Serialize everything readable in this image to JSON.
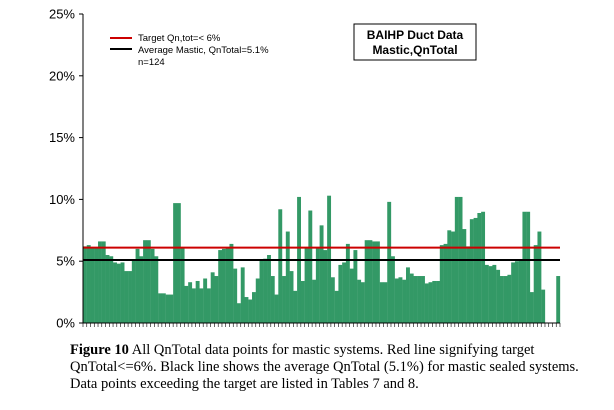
{
  "chart_data": {
    "type": "bar",
    "title": "BAIHP Duct Data Mastic,QnTotal",
    "title_lines": [
      "BAIHP Duct Data",
      "Mastic,QnTotal"
    ],
    "ylim": [
      0,
      25
    ],
    "yticks": [
      0,
      5,
      10,
      15,
      20,
      25
    ],
    "ytick_labels": [
      "0%",
      "5%",
      "10%",
      "15%",
      "20%",
      "25%"
    ],
    "grid": false,
    "legend_position": "top-left",
    "bar_color": "#339966",
    "reference_lines": [
      {
        "name": "Target Qn,tot=< 6%",
        "value": 6.1,
        "color": "#cc0000"
      },
      {
        "name": "Average Mastic, QnTotal=5.1%",
        "value": 5.1,
        "color": "#000000"
      }
    ],
    "note": "n=124",
    "values": [
      6.2,
      6.3,
      6.1,
      6.1,
      6.6,
      6.6,
      5.5,
      5.4,
      4.9,
      4.8,
      4.9,
      4.2,
      4.2,
      5.1,
      6.0,
      5.4,
      6.7,
      6.7,
      6.0,
      5.4,
      2.4,
      2.4,
      2.3,
      2.3,
      9.7,
      9.7,
      6.1,
      3.0,
      3.3,
      2.8,
      3.4,
      2.8,
      3.6,
      2.8,
      4.1,
      3.8,
      5.9,
      6.0,
      6.1,
      6.4,
      4.4,
      1.6,
      4.5,
      2.1,
      1.9,
      2.5,
      3.6,
      5.1,
      5.2,
      5.5,
      3.8,
      2.3,
      9.2,
      3.8,
      7.4,
      4.2,
      2.6,
      10.2,
      3.4,
      6.1,
      9.1,
      3.5,
      6.1,
      7.9,
      5.9,
      10.3,
      3.7,
      2.6,
      4.7,
      4.9,
      6.4,
      4.4,
      5.9,
      3.5,
      3.3,
      6.7,
      6.7,
      6.6,
      6.6,
      3.3,
      3.3,
      9.8,
      5.4,
      3.6,
      3.7,
      3.5,
      4.5,
      4.0,
      3.8,
      3.8,
      3.8,
      3.2,
      3.3,
      3.4,
      3.4,
      6.3,
      6.4,
      7.5,
      7.4,
      10.2,
      10.2,
      7.6,
      6.2,
      8.4,
      8.5,
      8.9,
      9.0,
      4.7,
      4.6,
      4.7,
      4.3,
      3.8,
      3.8,
      3.9,
      4.9,
      5.0,
      5.1,
      9.0,
      9.0,
      2.5,
      6.3,
      7.4,
      2.7,
      0,
      0,
      0,
      3.8
    ]
  },
  "caption": {
    "label": "Figure 10",
    "text": " All QnTotal data points for mastic systems. Red line signifying target QnTotal<=6%. Black line shows the average QnTotal (5.1%) for mastic sealed systems. Data points exceeding the target are listed in Tables 7 and 8."
  }
}
